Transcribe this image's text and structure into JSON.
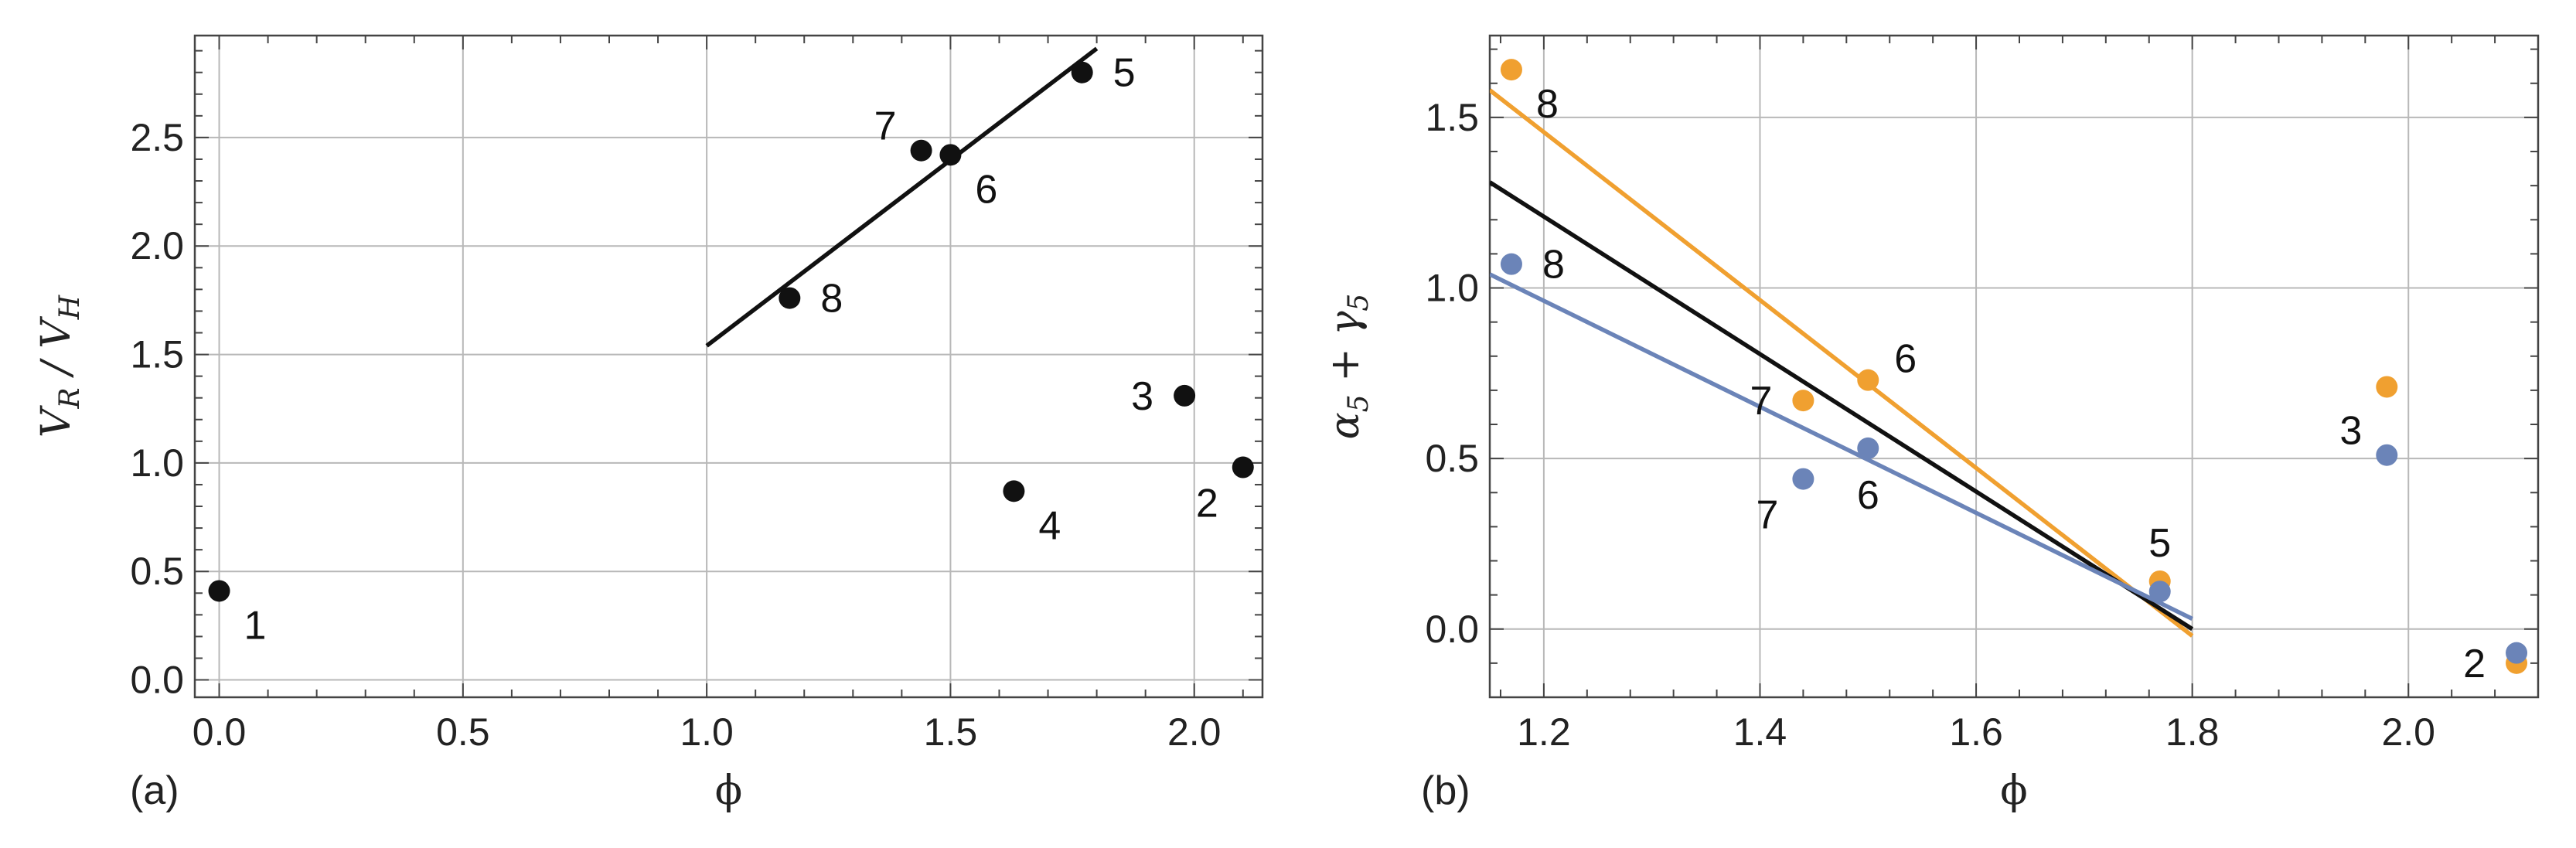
{
  "chart_data": [
    {
      "type": "scatter",
      "panel_label": "(a)",
      "xlabel": "ϕ",
      "ylabel_main_1": "V",
      "ylabel_sub_1": "R",
      "ylabel_sep": "/",
      "ylabel_main_2": "V",
      "ylabel_sub_2": "H",
      "xlim": [
        -0.05,
        2.14
      ],
      "ylim": [
        -0.08,
        2.97
      ],
      "xticks": [
        0.0,
        0.5,
        1.0,
        1.5,
        2.0
      ],
      "xtick_labels": [
        "0.0",
        "0.5",
        "1.0",
        "1.5",
        "2.0"
      ],
      "yticks": [
        0.0,
        0.5,
        1.0,
        1.5,
        2.0,
        2.5
      ],
      "ytick_labels": [
        "0.0",
        "0.5",
        "1.0",
        "1.5",
        "2.0",
        "2.5"
      ],
      "grid": true,
      "series": [
        {
          "color": "#111111",
          "points": [
            {
              "x": 0.0,
              "y": 0.41,
              "label": "1",
              "pos": "below-right"
            },
            {
              "x": 2.1,
              "y": 0.98,
              "label": "2",
              "pos": "below-left"
            },
            {
              "x": 1.98,
              "y": 1.31,
              "label": "3",
              "pos": "left"
            },
            {
              "x": 1.63,
              "y": 0.87,
              "label": "4",
              "pos": "below-right"
            },
            {
              "x": 1.77,
              "y": 2.8,
              "label": "5",
              "pos": "right"
            },
            {
              "x": 1.5,
              "y": 2.42,
              "label": "6",
              "pos": "below-right"
            },
            {
              "x": 1.44,
              "y": 2.44,
              "label": "7",
              "pos": "upper-left"
            },
            {
              "x": 1.17,
              "y": 1.76,
              "label": "8",
              "pos": "right"
            }
          ]
        }
      ],
      "lines": [
        {
          "color": "#111111",
          "x": [
            1.0,
            1.8
          ],
          "y": [
            1.54,
            2.91
          ]
        }
      ]
    },
    {
      "type": "scatter",
      "panel_label": "(b)",
      "xlabel": "ϕ",
      "ylabel_main_1": "α",
      "ylabel_sub_1": "5",
      "ylabel_sep": "+",
      "ylabel_main_2": "γ",
      "ylabel_sub_2": "5",
      "xlim": [
        1.15,
        2.12
      ],
      "ylim": [
        -0.2,
        1.74
      ],
      "xticks": [
        1.2,
        1.4,
        1.6,
        1.8,
        2.0
      ],
      "xtick_labels": [
        "1.2",
        "1.4",
        "1.6",
        "1.8",
        "2.0"
      ],
      "yticks": [
        0.0,
        0.5,
        1.0,
        1.5
      ],
      "ytick_labels": [
        "0.0",
        "0.5",
        "1.0",
        "1.5"
      ],
      "grid": true,
      "series": [
        {
          "color": "#f0a030",
          "points": [
            {
              "x": 1.17,
              "y": 1.64,
              "label": "8",
              "pos": "below-right"
            },
            {
              "x": 1.44,
              "y": 0.67,
              "label": "7",
              "pos": "left"
            },
            {
              "x": 1.5,
              "y": 0.73,
              "label": "6",
              "pos": "upper-right"
            },
            {
              "x": 1.77,
              "y": 0.14,
              "label": "5",
              "pos": "above"
            },
            {
              "x": 1.98,
              "y": 0.71,
              "label": "",
              "pos": ""
            },
            {
              "x": 2.1,
              "y": -0.1,
              "label": "2",
              "pos": "left"
            }
          ]
        },
        {
          "color": "#6b84b8",
          "points": [
            {
              "x": 1.17,
              "y": 1.07,
              "label": "8",
              "pos": "right"
            },
            {
              "x": 1.44,
              "y": 0.44,
              "label": "7",
              "pos": "below-left"
            },
            {
              "x": 1.5,
              "y": 0.53,
              "label": "6",
              "pos": "below"
            },
            {
              "x": 1.77,
              "y": 0.11,
              "label": "",
              "pos": ""
            },
            {
              "x": 1.98,
              "y": 0.51,
              "label": "3",
              "pos": "upper-left"
            },
            {
              "x": 2.1,
              "y": -0.07,
              "label": "",
              "pos": ""
            }
          ]
        }
      ],
      "lines": [
        {
          "color": "#f0a030",
          "x": [
            1.15,
            1.8
          ],
          "y": [
            1.58,
            -0.02
          ]
        },
        {
          "color": "#111111",
          "x": [
            1.15,
            1.8
          ],
          "y": [
            1.31,
            0.0
          ]
        },
        {
          "color": "#6b84b8",
          "x": [
            1.15,
            1.8
          ],
          "y": [
            1.04,
            0.03
          ]
        }
      ]
    }
  ]
}
